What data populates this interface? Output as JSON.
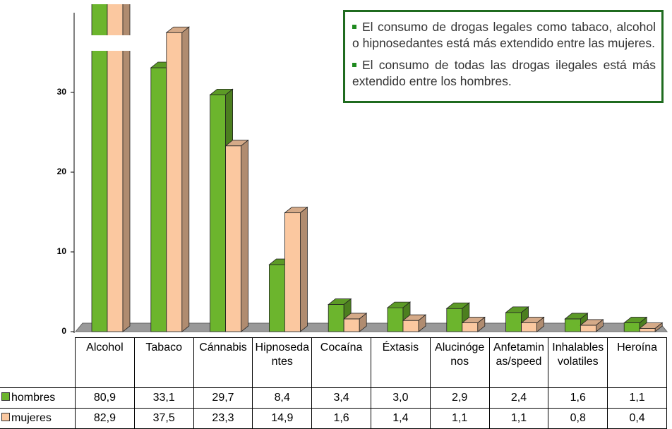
{
  "chart_data": {
    "type": "bar3d",
    "categories": [
      "Alcohol",
      "Tabaco",
      "Cánnabis",
      "Hipnosedantes",
      "Cocaína",
      "Éxtasis",
      "Alucinógenos",
      "Anfetaminas/speed",
      "Inhalables volatiles",
      "Heroína"
    ],
    "series": [
      {
        "name": "hombres",
        "color": "#6cb52d",
        "values": [
          80.9,
          33.1,
          29.7,
          8.4,
          3.4,
          3.0,
          2.9,
          2.4,
          1.6,
          1.1
        ],
        "value_labels": [
          "80,9",
          "33,1",
          "29,7",
          "8,4",
          "3,4",
          "3,0",
          "2,9",
          "2,4",
          "1,6",
          "1,1"
        ]
      },
      {
        "name": "mujeres",
        "color": "#fbc8a0",
        "values": [
          82.9,
          37.5,
          23.3,
          14.9,
          1.6,
          1.4,
          1.1,
          1.1,
          0.8,
          0.4
        ],
        "value_labels": [
          "82,9",
          "37,5",
          "23,3",
          "14,9",
          "1,6",
          "1,4",
          "1,1",
          "1,1",
          "0,8",
          "0,4"
        ]
      }
    ],
    "ylim": [
      0,
      40
    ],
    "yticks": [
      0,
      10,
      20,
      30
    ],
    "annotations": [
      "El consumo de drogas legales como tabaco, alcohol o hipnosedantes está más extendido entre las mujeres.",
      "El consumo de todas las drogas ilegales está más extendido entre los hombres."
    ]
  }
}
